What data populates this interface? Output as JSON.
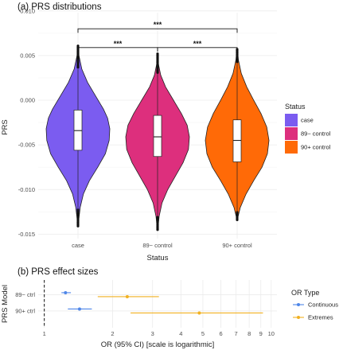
{
  "chart_data": [
    {
      "type": "violin",
      "title": "(a) PRS distributions",
      "xlabel": "Status",
      "ylabel": "PRS",
      "ylim": [
        -0.0155,
        0.0098
      ],
      "y_ticks": [
        0.01,
        0.005,
        0.0,
        -0.005,
        -0.01,
        -0.015
      ],
      "y_tick_labels": [
        "0.010",
        "0.005",
        "0.000",
        "-0.005",
        "-0.010",
        "-0.015"
      ],
      "categories": [
        "case",
        "89− control",
        "90+ control"
      ],
      "grid": true,
      "legend": {
        "title": "Status",
        "position": "right",
        "entries": [
          {
            "label": "case",
            "color": "#7B5CF0"
          },
          {
            "label": "89− control",
            "color": "#DD2F7D"
          },
          {
            "label": "90+ control",
            "color": "#FF6A07"
          }
        ]
      },
      "groups": [
        {
          "name": "case",
          "color": "#7B5CF0",
          "min": -0.0141,
          "max": 0.0062,
          "q1": -0.0056,
          "median": -0.0034,
          "q3": -0.0011,
          "whisker_low": -0.0122,
          "whisker_high": 0.0037,
          "density": [
            [
              0.0062,
              0.003
            ],
            [
              0.005,
              0.03
            ],
            [
              0.0035,
              0.12
            ],
            [
              0.002,
              0.3
            ],
            [
              0.0005,
              0.55
            ],
            [
              -0.001,
              0.8
            ],
            [
              -0.002,
              0.93
            ],
            [
              -0.0032,
              1.0
            ],
            [
              -0.0045,
              0.98
            ],
            [
              -0.006,
              0.86
            ],
            [
              -0.0075,
              0.62
            ],
            [
              -0.009,
              0.36
            ],
            [
              -0.0105,
              0.17
            ],
            [
              -0.012,
              0.07
            ],
            [
              -0.0132,
              0.03
            ],
            [
              -0.0141,
              0.003
            ]
          ]
        },
        {
          "name": "89− control",
          "color": "#DD2F7D",
          "min": -0.0145,
          "max": 0.0053,
          "q1": -0.0063,
          "median": -0.0041,
          "q3": -0.0017,
          "whisker_low": -0.0131,
          "whisker_high": 0.0031,
          "density": [
            [
              0.0053,
              0.003
            ],
            [
              0.004,
              0.03
            ],
            [
              0.0028,
              0.1
            ],
            [
              0.0015,
              0.25
            ],
            [
              0.0,
              0.5
            ],
            [
              -0.0015,
              0.75
            ],
            [
              -0.0028,
              0.93
            ],
            [
              -0.0041,
              1.0
            ],
            [
              -0.0055,
              0.97
            ],
            [
              -0.007,
              0.8
            ],
            [
              -0.0085,
              0.56
            ],
            [
              -0.01,
              0.32
            ],
            [
              -0.0115,
              0.14
            ],
            [
              -0.013,
              0.05
            ],
            [
              -0.014,
              0.02
            ],
            [
              -0.0145,
              0.003
            ]
          ]
        },
        {
          "name": "90+ control",
          "color": "#FF6A07",
          "min": -0.0134,
          "max": 0.0058,
          "q1": -0.0069,
          "median": -0.0045,
          "q3": -0.0022,
          "whisker_low": -0.0125,
          "whisker_high": 0.0043,
          "density": [
            [
              0.0058,
              0.003
            ],
            [
              0.0045,
              0.04
            ],
            [
              0.003,
              0.13
            ],
            [
              0.0015,
              0.3
            ],
            [
              0.0,
              0.52
            ],
            [
              -0.0015,
              0.75
            ],
            [
              -0.003,
              0.93
            ],
            [
              -0.0045,
              1.0
            ],
            [
              -0.006,
              0.95
            ],
            [
              -0.0075,
              0.78
            ],
            [
              -0.009,
              0.52
            ],
            [
              -0.0105,
              0.28
            ],
            [
              -0.012,
              0.1
            ],
            [
              -0.0134,
              0.003
            ]
          ]
        }
      ],
      "significance": [
        {
          "from": "case",
          "to": "89− control",
          "label": "***"
        },
        {
          "from": "89− control",
          "to": "90+ control",
          "label": "***"
        },
        {
          "from": "case",
          "to": "90+ control",
          "label": "***"
        }
      ]
    },
    {
      "type": "forest",
      "title": "(b) PRS effect sizes",
      "xlabel": "OR (95% CI) [scale is logarithmic]",
      "ylabel": "PRS Model",
      "x_scale": "log",
      "xlim": [
        0.94,
        10.6
      ],
      "x_ticks": [
        1,
        2,
        3,
        4,
        5,
        6,
        7,
        8,
        9,
        10
      ],
      "reference_line": 1,
      "categories": [
        "89− ctrl",
        "90+ ctrl"
      ],
      "legend": {
        "title": "OR Type",
        "position": "right",
        "entries": [
          {
            "label": "Continuous",
            "color": "#4E86E8"
          },
          {
            "label": "Extremes",
            "color": "#F1B121"
          }
        ]
      },
      "series": [
        {
          "name": "Continuous",
          "color": "#4E86E8",
          "points": [
            {
              "model": "89− ctrl",
              "or": 1.24,
              "lo": 1.19,
              "hi": 1.31
            },
            {
              "model": "90+ ctrl",
              "or": 1.43,
              "lo": 1.27,
              "hi": 1.62
            }
          ]
        },
        {
          "name": "Extremes",
          "color": "#F1B121",
          "points": [
            {
              "model": "89− ctrl",
              "or": 2.32,
              "lo": 1.72,
              "hi": 3.2
            },
            {
              "model": "90+ ctrl",
              "or": 4.82,
              "lo": 2.4,
              "hi": 9.2
            }
          ]
        }
      ]
    }
  ]
}
